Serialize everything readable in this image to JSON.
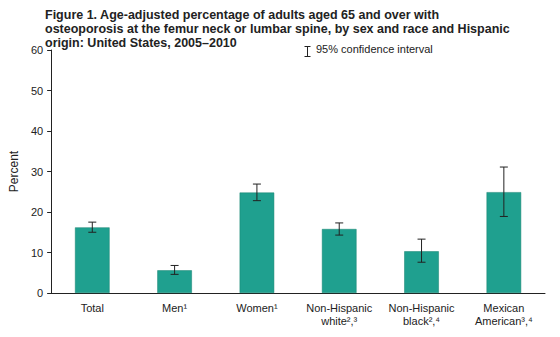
{
  "chart_data": {
    "type": "bar",
    "title": "Figure 1. Age-adjusted percentage of adults aged 65 and over with osteoporosis at the femur neck or lumbar spine, by sex and race and Hispanic origin: United States, 2005–2010",
    "y_label": "Percent",
    "annotation": "95% confidence interval",
    "categories": [
      "Total",
      "Men¹",
      "Women¹",
      "Non-Hispanic white²,³",
      "Non-Hispanic black²,⁴",
      "Mexican American³,⁴"
    ],
    "values": [
      16.2,
      5.6,
      24.8,
      15.8,
      10.3,
      24.9
    ],
    "ci_low": [
      15.0,
      4.6,
      22.8,
      14.3,
      7.6,
      18.9
    ],
    "ci_high": [
      17.5,
      6.8,
      26.9,
      17.3,
      13.3,
      31.1
    ],
    "color": "#1fa08f",
    "ylim": [
      0,
      60
    ],
    "yticks": [
      0,
      10,
      20,
      30,
      40,
      50,
      60
    ],
    "grid": false
  }
}
